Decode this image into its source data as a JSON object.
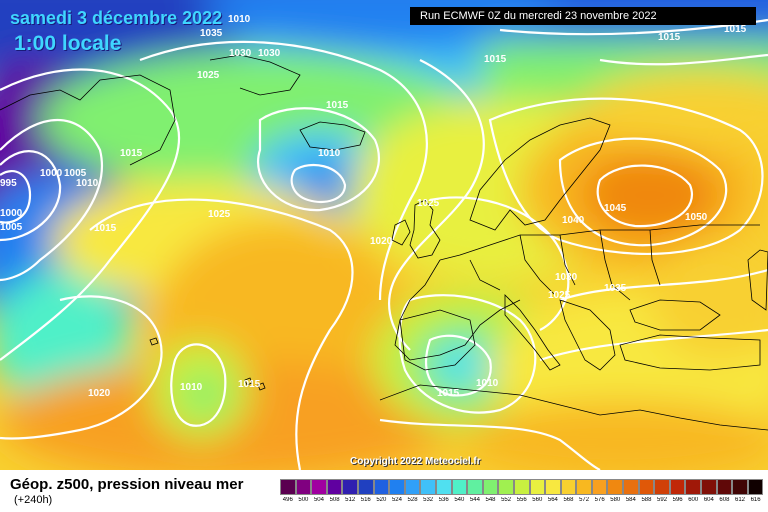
{
  "title": {
    "date": "samedi 3 décembre 2022",
    "time": "1:00 locale"
  },
  "run_banner": "Run ECMWF 0Z du mercredi 23 novembre 2022",
  "copyright": "Copyright 2022 Meteociel.fr",
  "legend": {
    "title": "Géop. z500, pression niveau mer",
    "subtitle": "(+240h)",
    "scale_values": [
      "496",
      "500",
      "504",
      "508",
      "512",
      "516",
      "520",
      "524",
      "528",
      "532",
      "536",
      "540",
      "544",
      "548",
      "552",
      "556",
      "560",
      "564",
      "568",
      "572",
      "576",
      "580",
      "584",
      "588",
      "592",
      "596",
      "600",
      "604",
      "608",
      "612",
      "616"
    ],
    "scale_colors": [
      "#5a0050",
      "#800080",
      "#a000a0",
      "#6000a0",
      "#3020b0",
      "#2040c0",
      "#2060e0",
      "#2080f0",
      "#30a0f8",
      "#40c0f8",
      "#50e0f0",
      "#50f0c8",
      "#60f0a0",
      "#80f070",
      "#a0f050",
      "#c8f040",
      "#e8f040",
      "#f8e840",
      "#f8d030",
      "#f8b820",
      "#f8a020",
      "#f08810",
      "#e87010",
      "#e05808",
      "#d04008",
      "#c02808",
      "#a01808",
      "#801008",
      "#600808",
      "#400404",
      "#100000"
    ]
  },
  "isobar_labels": [
    {
      "text": "1035"
    },
    {
      "text": "1030"
    },
    {
      "text": "1030"
    },
    {
      "text": "1025"
    },
    {
      "text": "1015"
    },
    {
      "text": "1015"
    },
    {
      "text": "1010"
    },
    {
      "text": "1015"
    },
    {
      "text": "1010"
    },
    {
      "text": "1005"
    },
    {
      "text": "1000"
    },
    {
      "text": "995"
    },
    {
      "text": "1000"
    },
    {
      "text": "1005"
    },
    {
      "text": "1015"
    },
    {
      "text": "1025"
    },
    {
      "text": "1015"
    },
    {
      "text": "1025"
    },
    {
      "text": "1020"
    },
    {
      "text": "1040"
    },
    {
      "text": "1045"
    },
    {
      "text": "1050"
    },
    {
      "text": "1030"
    },
    {
      "text": "1025"
    },
    {
      "text": "1035"
    },
    {
      "text": "1010"
    },
    {
      "text": "1015"
    },
    {
      "text": "1020"
    },
    {
      "text": "1015"
    },
    {
      "text": "1010"
    },
    {
      "text": "1015"
    },
    {
      "text": "1010"
    }
  ]
}
